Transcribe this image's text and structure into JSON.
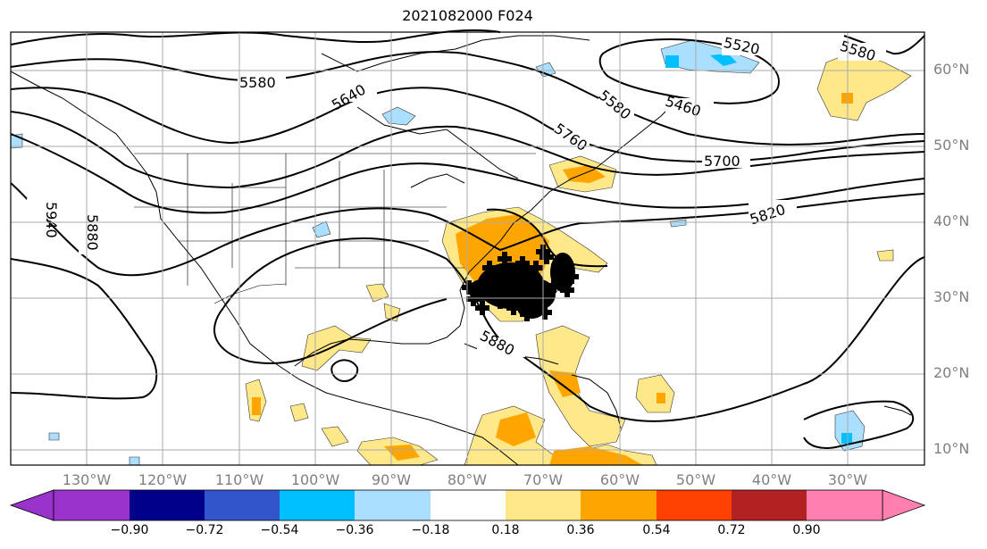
{
  "title": "2021082000 F024",
  "lat_labels": [
    "60°N",
    "50°N",
    "40°N",
    "30°N",
    "20°N",
    "10°N"
  ],
  "lon_labels": [
    "130°W",
    "120°W",
    "110°W",
    "100°W",
    "90°W",
    "80°W",
    "70°W",
    "60°W",
    "50°W",
    "40°W",
    "30°W"
  ],
  "contour_labels": [
    "5520",
    "5580",
    "5580",
    "5640",
    "5460",
    "5580",
    "5700",
    "5760",
    "5820",
    "5880",
    "5880",
    "5940"
  ],
  "colorbar": {
    "ticks": [
      "−0.90",
      "−0.72",
      "−0.54",
      "−0.36",
      "−0.18",
      "0.18",
      "0.36",
      "0.54",
      "0.72",
      "0.90"
    ],
    "colors": [
      "#9933cc",
      "#00008b",
      "#3355cc",
      "#00bfff",
      "#aadfff",
      "#ffffff",
      "#ffe88a",
      "#ffa500",
      "#ff4000",
      "#b22222",
      "#ff80b0"
    ]
  }
}
